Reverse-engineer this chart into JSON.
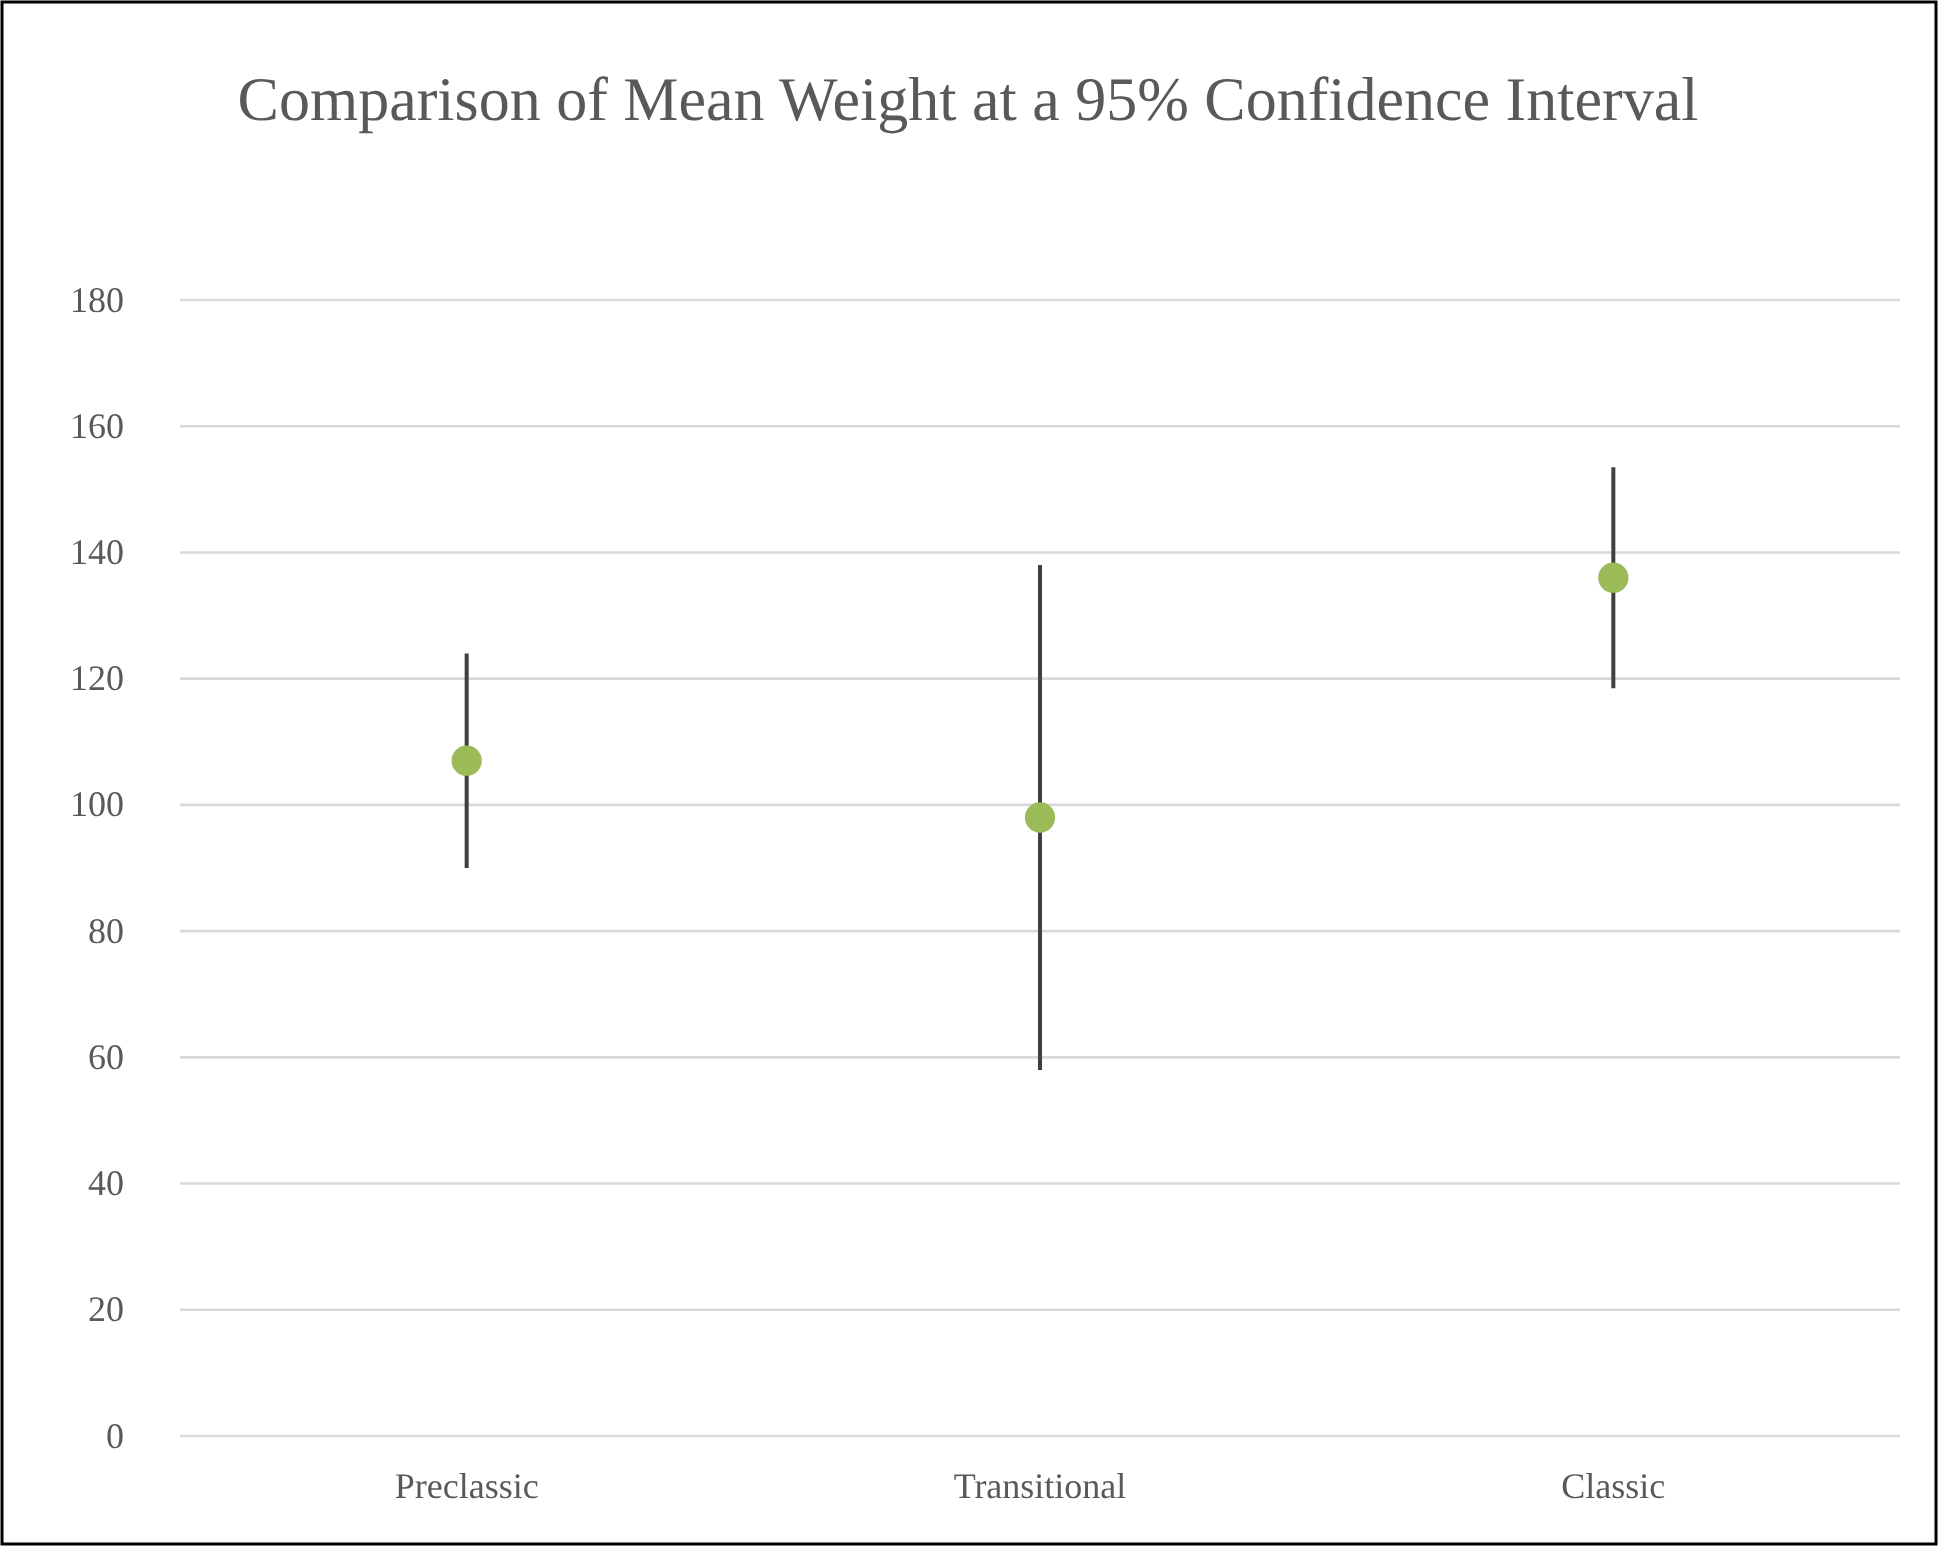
{
  "chart_data": {
    "type": "scatter",
    "title": "Comparison of Mean Weight at a 95% Confidence Interval",
    "categories": [
      "Preclassic",
      "Transitional",
      "Classic"
    ],
    "values": [
      107,
      98,
      136
    ],
    "errors": [
      [
        90,
        124
      ],
      [
        58,
        138
      ],
      [
        118.5,
        153.5
      ]
    ],
    "color": "#9bbb59",
    "marker": "circle",
    "ylim": [
      0,
      180
    ],
    "yticks": [
      0,
      20,
      40,
      60,
      80,
      100,
      120,
      140,
      160,
      180
    ],
    "grid": "y",
    "legend": false
  }
}
